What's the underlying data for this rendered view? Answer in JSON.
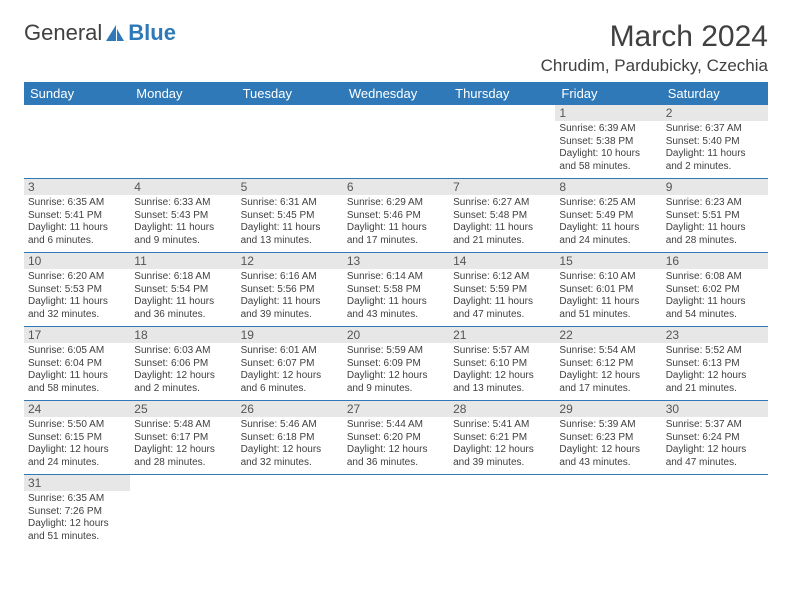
{
  "logo": {
    "part1": "General",
    "part2": "Blue"
  },
  "header": {
    "month_title": "March 2024",
    "location": "Chrudim, Pardubicky, Czechia"
  },
  "weekdays": [
    "Sunday",
    "Monday",
    "Tuesday",
    "Wednesday",
    "Thursday",
    "Friday",
    "Saturday"
  ],
  "colors": {
    "header_bg": "#2f79b8",
    "header_text": "#ffffff",
    "daynum_bg": "#e7e7e7",
    "border": "#2f79b8",
    "text": "#404040"
  },
  "blanks_before": 5,
  "days": [
    {
      "n": "1",
      "sunrise": "Sunrise: 6:39 AM",
      "sunset": "Sunset: 5:38 PM",
      "day1": "Daylight: 10 hours",
      "day2": "and 58 minutes."
    },
    {
      "n": "2",
      "sunrise": "Sunrise: 6:37 AM",
      "sunset": "Sunset: 5:40 PM",
      "day1": "Daylight: 11 hours",
      "day2": "and 2 minutes."
    },
    {
      "n": "3",
      "sunrise": "Sunrise: 6:35 AM",
      "sunset": "Sunset: 5:41 PM",
      "day1": "Daylight: 11 hours",
      "day2": "and 6 minutes."
    },
    {
      "n": "4",
      "sunrise": "Sunrise: 6:33 AM",
      "sunset": "Sunset: 5:43 PM",
      "day1": "Daylight: 11 hours",
      "day2": "and 9 minutes."
    },
    {
      "n": "5",
      "sunrise": "Sunrise: 6:31 AM",
      "sunset": "Sunset: 5:45 PM",
      "day1": "Daylight: 11 hours",
      "day2": "and 13 minutes."
    },
    {
      "n": "6",
      "sunrise": "Sunrise: 6:29 AM",
      "sunset": "Sunset: 5:46 PM",
      "day1": "Daylight: 11 hours",
      "day2": "and 17 minutes."
    },
    {
      "n": "7",
      "sunrise": "Sunrise: 6:27 AM",
      "sunset": "Sunset: 5:48 PM",
      "day1": "Daylight: 11 hours",
      "day2": "and 21 minutes."
    },
    {
      "n": "8",
      "sunrise": "Sunrise: 6:25 AM",
      "sunset": "Sunset: 5:49 PM",
      "day1": "Daylight: 11 hours",
      "day2": "and 24 minutes."
    },
    {
      "n": "9",
      "sunrise": "Sunrise: 6:23 AM",
      "sunset": "Sunset: 5:51 PM",
      "day1": "Daylight: 11 hours",
      "day2": "and 28 minutes."
    },
    {
      "n": "10",
      "sunrise": "Sunrise: 6:20 AM",
      "sunset": "Sunset: 5:53 PM",
      "day1": "Daylight: 11 hours",
      "day2": "and 32 minutes."
    },
    {
      "n": "11",
      "sunrise": "Sunrise: 6:18 AM",
      "sunset": "Sunset: 5:54 PM",
      "day1": "Daylight: 11 hours",
      "day2": "and 36 minutes."
    },
    {
      "n": "12",
      "sunrise": "Sunrise: 6:16 AM",
      "sunset": "Sunset: 5:56 PM",
      "day1": "Daylight: 11 hours",
      "day2": "and 39 minutes."
    },
    {
      "n": "13",
      "sunrise": "Sunrise: 6:14 AM",
      "sunset": "Sunset: 5:58 PM",
      "day1": "Daylight: 11 hours",
      "day2": "and 43 minutes."
    },
    {
      "n": "14",
      "sunrise": "Sunrise: 6:12 AM",
      "sunset": "Sunset: 5:59 PM",
      "day1": "Daylight: 11 hours",
      "day2": "and 47 minutes."
    },
    {
      "n": "15",
      "sunrise": "Sunrise: 6:10 AM",
      "sunset": "Sunset: 6:01 PM",
      "day1": "Daylight: 11 hours",
      "day2": "and 51 minutes."
    },
    {
      "n": "16",
      "sunrise": "Sunrise: 6:08 AM",
      "sunset": "Sunset: 6:02 PM",
      "day1": "Daylight: 11 hours",
      "day2": "and 54 minutes."
    },
    {
      "n": "17",
      "sunrise": "Sunrise: 6:05 AM",
      "sunset": "Sunset: 6:04 PM",
      "day1": "Daylight: 11 hours",
      "day2": "and 58 minutes."
    },
    {
      "n": "18",
      "sunrise": "Sunrise: 6:03 AM",
      "sunset": "Sunset: 6:06 PM",
      "day1": "Daylight: 12 hours",
      "day2": "and 2 minutes."
    },
    {
      "n": "19",
      "sunrise": "Sunrise: 6:01 AM",
      "sunset": "Sunset: 6:07 PM",
      "day1": "Daylight: 12 hours",
      "day2": "and 6 minutes."
    },
    {
      "n": "20",
      "sunrise": "Sunrise: 5:59 AM",
      "sunset": "Sunset: 6:09 PM",
      "day1": "Daylight: 12 hours",
      "day2": "and 9 minutes."
    },
    {
      "n": "21",
      "sunrise": "Sunrise: 5:57 AM",
      "sunset": "Sunset: 6:10 PM",
      "day1": "Daylight: 12 hours",
      "day2": "and 13 minutes."
    },
    {
      "n": "22",
      "sunrise": "Sunrise: 5:54 AM",
      "sunset": "Sunset: 6:12 PM",
      "day1": "Daylight: 12 hours",
      "day2": "and 17 minutes."
    },
    {
      "n": "23",
      "sunrise": "Sunrise: 5:52 AM",
      "sunset": "Sunset: 6:13 PM",
      "day1": "Daylight: 12 hours",
      "day2": "and 21 minutes."
    },
    {
      "n": "24",
      "sunrise": "Sunrise: 5:50 AM",
      "sunset": "Sunset: 6:15 PM",
      "day1": "Daylight: 12 hours",
      "day2": "and 24 minutes."
    },
    {
      "n": "25",
      "sunrise": "Sunrise: 5:48 AM",
      "sunset": "Sunset: 6:17 PM",
      "day1": "Daylight: 12 hours",
      "day2": "and 28 minutes."
    },
    {
      "n": "26",
      "sunrise": "Sunrise: 5:46 AM",
      "sunset": "Sunset: 6:18 PM",
      "day1": "Daylight: 12 hours",
      "day2": "and 32 minutes."
    },
    {
      "n": "27",
      "sunrise": "Sunrise: 5:44 AM",
      "sunset": "Sunset: 6:20 PM",
      "day1": "Daylight: 12 hours",
      "day2": "and 36 minutes."
    },
    {
      "n": "28",
      "sunrise": "Sunrise: 5:41 AM",
      "sunset": "Sunset: 6:21 PM",
      "day1": "Daylight: 12 hours",
      "day2": "and 39 minutes."
    },
    {
      "n": "29",
      "sunrise": "Sunrise: 5:39 AM",
      "sunset": "Sunset: 6:23 PM",
      "day1": "Daylight: 12 hours",
      "day2": "and 43 minutes."
    },
    {
      "n": "30",
      "sunrise": "Sunrise: 5:37 AM",
      "sunset": "Sunset: 6:24 PM",
      "day1": "Daylight: 12 hours",
      "day2": "and 47 minutes."
    },
    {
      "n": "31",
      "sunrise": "Sunrise: 6:35 AM",
      "sunset": "Sunset: 7:26 PM",
      "day1": "Daylight: 12 hours",
      "day2": "and 51 minutes."
    }
  ]
}
